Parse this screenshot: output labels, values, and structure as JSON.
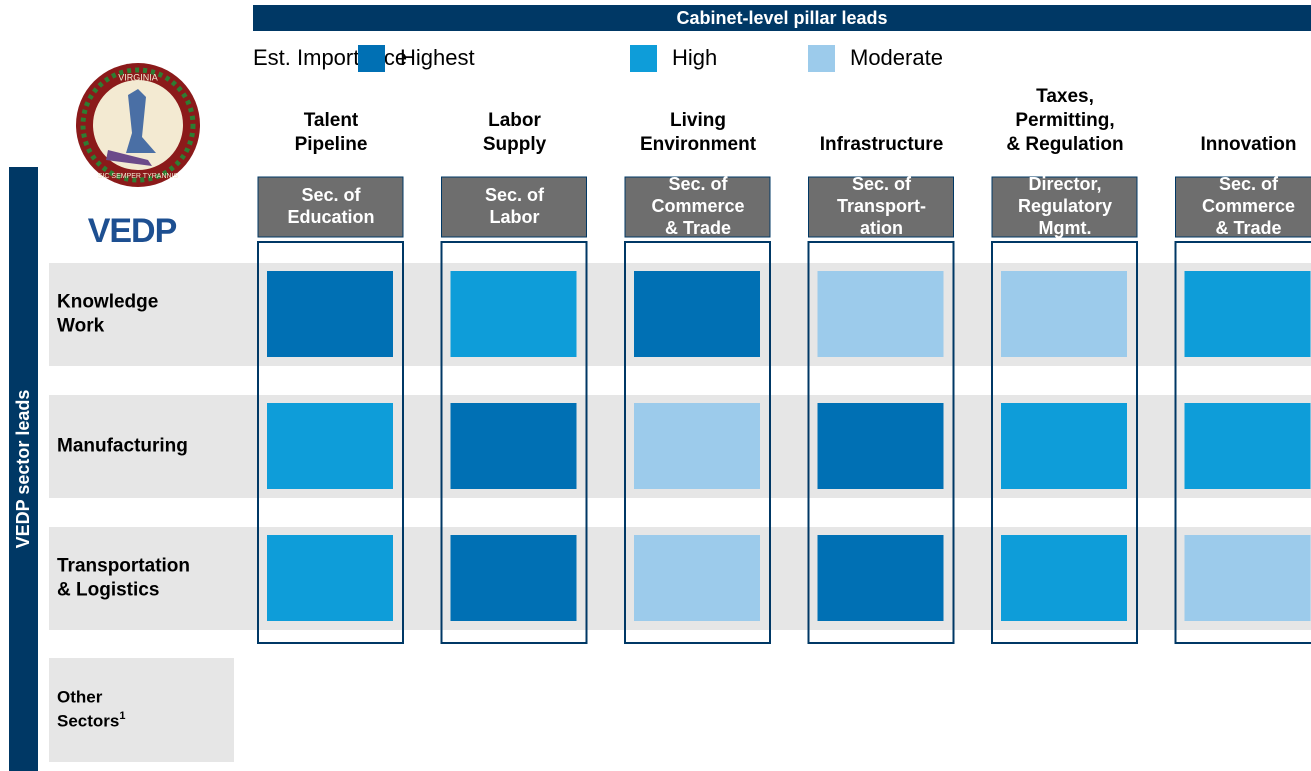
{
  "header": {
    "title": "Cabinet-level pillar leads",
    "side_label": "VEDP sector leads",
    "logo": "VEDP",
    "seal": {
      "top": "VIRGINIA",
      "bottom": "SIC SEMPER TYRANNIS"
    }
  },
  "legend": {
    "label": "Est. Importance",
    "levels": [
      {
        "name": "Highest",
        "color": "#0070b4"
      },
      {
        "name": "High",
        "color": "#0e9dd9"
      },
      {
        "name": "Moderate",
        "color": "#9ccbeb"
      }
    ]
  },
  "columns": [
    {
      "name": [
        "Talent",
        "Pipeline"
      ],
      "lead": [
        "Sec. of",
        "Education"
      ]
    },
    {
      "name": [
        "Labor",
        "Supply"
      ],
      "lead": [
        "Sec. of",
        "Labor"
      ]
    },
    {
      "name": [
        "Living",
        "Environment"
      ],
      "lead": [
        "Sec. of",
        "Commerce",
        "& Trade"
      ]
    },
    {
      "name": [
        "Infrastructure"
      ],
      "lead": [
        "Sec. of",
        "Transport-",
        "ation"
      ]
    },
    {
      "name": [
        "Taxes,",
        "Permitting,",
        "& Regulation"
      ],
      "lead": [
        "Director,",
        "Regulatory",
        "Mgmt."
      ]
    },
    {
      "name": [
        "Innovation"
      ],
      "lead": [
        "Sec. of",
        "Commerce",
        "& Trade"
      ]
    }
  ],
  "rows": [
    {
      "label": [
        "Knowledge",
        "Work"
      ],
      "cells": [
        "Highest",
        "High",
        "Highest",
        "Moderate",
        "Moderate",
        "High"
      ]
    },
    {
      "label": [
        "Manufacturing"
      ],
      "cells": [
        "High",
        "Highest",
        "Moderate",
        "Highest",
        "High",
        "High"
      ]
    },
    {
      "label": [
        "Transportation",
        "& Logistics"
      ],
      "cells": [
        "High",
        "Highest",
        "Moderate",
        "Highest",
        "High",
        "Moderate"
      ]
    }
  ],
  "other": {
    "label": [
      "Other",
      "Sectors"
    ],
    "footnote": "1"
  }
}
